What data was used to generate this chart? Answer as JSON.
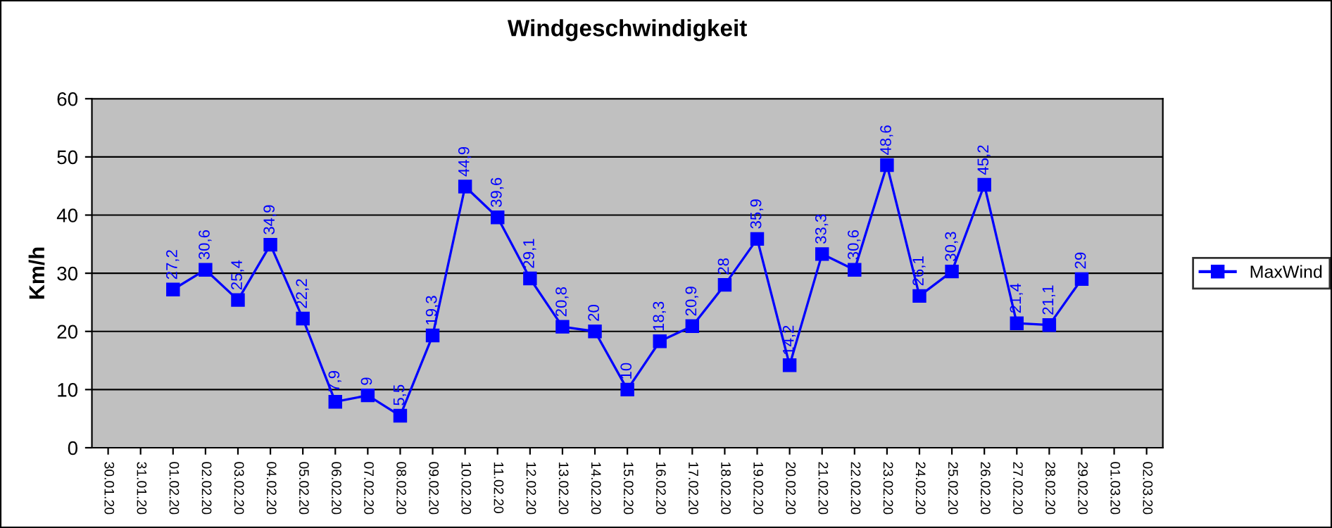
{
  "chart_data": {
    "type": "line",
    "title": "Windgeschwindigkeit",
    "ylabel": "Km/h",
    "categories": [
      "30.01.20",
      "31.01.20",
      "01.02.20",
      "02.02.20",
      "03.02.20",
      "04.02.20",
      "05.02.20",
      "06.02.20",
      "07.02.20",
      "08.02.20",
      "09.02.20",
      "10.02.20",
      "11.02.20",
      "12.02.20",
      "13.02.20",
      "14.02.20",
      "15.02.20",
      "16.02.20",
      "17.02.20",
      "18.02.20",
      "19.02.20",
      "20.02.20",
      "21.02.20",
      "22.02.20",
      "23.02.20",
      "24.02.20",
      "25.02.20",
      "26.02.20",
      "27.02.20",
      "28.02.20",
      "29.02.20",
      "01.03.20",
      "02.03.20"
    ],
    "series": [
      {
        "name": "MaxWind",
        "color": "#0000ff",
        "values": [
          null,
          null,
          27.2,
          30.6,
          25.4,
          34.9,
          22.2,
          7.9,
          9,
          5.5,
          19.3,
          44.9,
          39.6,
          29.1,
          20.8,
          20,
          10,
          18.3,
          20.9,
          28,
          35.9,
          14.2,
          33.3,
          30.6,
          48.6,
          26.1,
          30.3,
          45.2,
          21.4,
          21.1,
          29,
          null,
          null
        ],
        "value_labels": [
          null,
          null,
          "27,2",
          "30,6",
          "25,4",
          "34,9",
          "22,2",
          "7,9",
          "9",
          "5,5",
          "19,3",
          "44,9",
          "39,6",
          "29,1",
          "20,8",
          "20",
          "10",
          "18,3",
          "20,9",
          "28",
          "35,9",
          "14,2",
          "33,3",
          "30,6",
          "48,6",
          "26,1",
          "30,3",
          "45,2",
          "21,4",
          "21,1",
          "29",
          null,
          null
        ]
      }
    ],
    "ylim": [
      0,
      60
    ],
    "yticks": [
      0,
      10,
      20,
      30,
      40,
      50,
      60
    ],
    "grid": "y",
    "legend": "right",
    "marker": "square",
    "line_style": "solid"
  }
}
